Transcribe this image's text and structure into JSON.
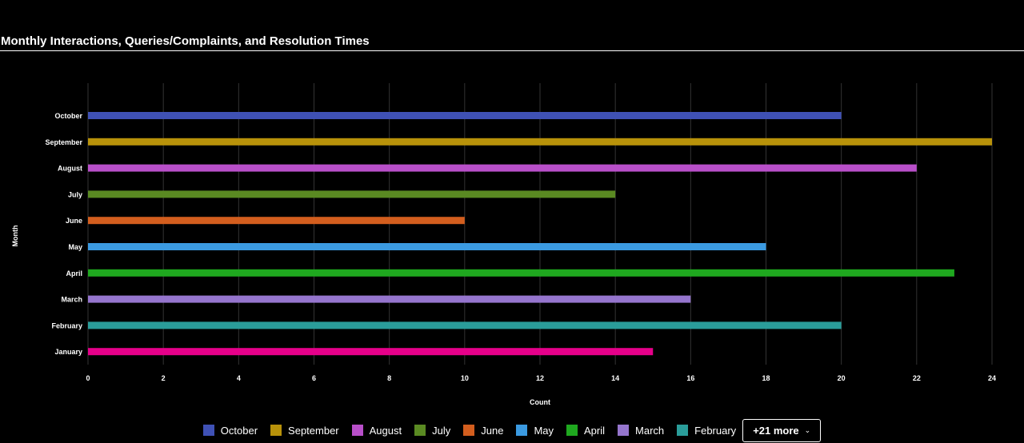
{
  "chart_data": {
    "type": "bar",
    "orientation": "horizontal",
    "title": "Monthly Interactions, Queries/Complaints, and Resolution Times",
    "xlabel": "Count",
    "ylabel": "Month",
    "categories": [
      "October",
      "September",
      "August",
      "July",
      "June",
      "May",
      "April",
      "March",
      "February",
      "January"
    ],
    "values": [
      20,
      24,
      22,
      14,
      10,
      18,
      23,
      16,
      20,
      15
    ],
    "colors": [
      "#3f51b5",
      "#b8920a",
      "#b84fc9",
      "#5a8a22",
      "#d35e1e",
      "#3b9ae1",
      "#1fa81f",
      "#9575cd",
      "#2a9d9a",
      "#e6008a"
    ],
    "xlim": [
      0,
      24
    ],
    "xticks": [
      0,
      2,
      4,
      6,
      8,
      10,
      12,
      14,
      16,
      18,
      20,
      22,
      24
    ],
    "grid": "vertical",
    "legend": {
      "position": "bottom",
      "items": [
        {
          "label": "October",
          "color": "#3f51b5"
        },
        {
          "label": "September",
          "color": "#b8920a"
        },
        {
          "label": "August",
          "color": "#b84fc9"
        },
        {
          "label": "July",
          "color": "#5a8a22"
        },
        {
          "label": "June",
          "color": "#d35e1e"
        },
        {
          "label": "May",
          "color": "#3b9ae1"
        },
        {
          "label": "April",
          "color": "#1fa81f"
        },
        {
          "label": "March",
          "color": "#9575cd"
        },
        {
          "label": "February",
          "color": "#2a9d9a"
        }
      ],
      "more_label": "+21 more",
      "more_icon": "chevron-down-icon"
    }
  }
}
